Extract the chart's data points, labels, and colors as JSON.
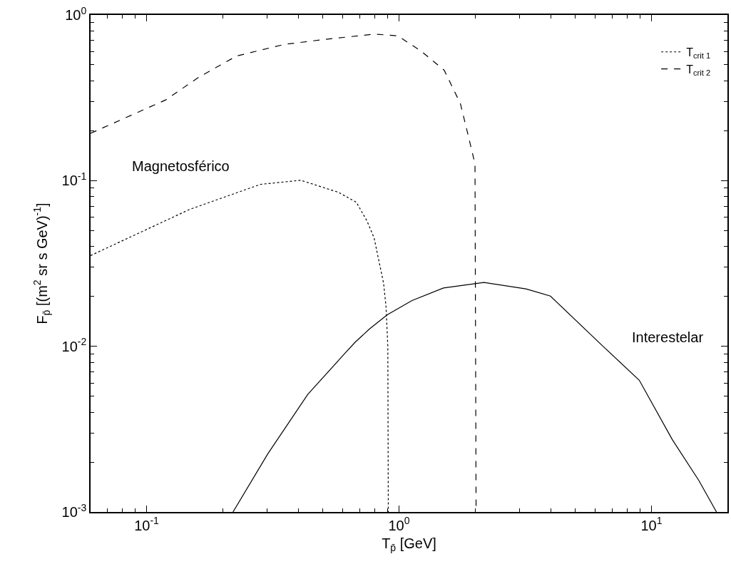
{
  "chart_data": {
    "type": "line",
    "xlabel": "T$_{p̄}$ [GeV]",
    "ylabel": "F$_{p̄}$ [(m$^{2}$ sr s GeV)$^{-1}$]",
    "log": "xy",
    "legend": "top right",
    "marker": "none",
    "xlim": [
      0.06,
      20
    ],
    "ylim": [
      0.001,
      1
    ],
    "xticks": [
      {
        "value": 0.07,
        "label": null
      },
      {
        "value": 0.08,
        "label": null
      },
      {
        "value": 0.09,
        "label": null
      },
      {
        "value": 0.1,
        "label": "10$^{-1}$"
      },
      {
        "value": 0.2,
        "label": null
      },
      {
        "value": 0.3,
        "label": null
      },
      {
        "value": 0.4,
        "label": null
      },
      {
        "value": 0.5,
        "label": null
      },
      {
        "value": 0.6,
        "label": null
      },
      {
        "value": 0.7,
        "label": null
      },
      {
        "value": 0.8,
        "label": null
      },
      {
        "value": 0.9,
        "label": null
      },
      {
        "value": 1,
        "label": "10$^{0}$"
      },
      {
        "value": 2,
        "label": null
      },
      {
        "value": 3,
        "label": null
      },
      {
        "value": 4,
        "label": null
      },
      {
        "value": 5,
        "label": null
      },
      {
        "value": 6,
        "label": null
      },
      {
        "value": 7,
        "label": null
      },
      {
        "value": 8,
        "label": null
      },
      {
        "value": 9,
        "label": null
      },
      {
        "value": 10,
        "label": "10$^{1}$"
      }
    ],
    "yticks": [
      {
        "value": 0.001,
        "label": "10$^{-3}$"
      },
      {
        "value": 0.002,
        "label": null
      },
      {
        "value": 0.003,
        "label": null
      },
      {
        "value": 0.004,
        "label": null
      },
      {
        "value": 0.005,
        "label": null
      },
      {
        "value": 0.006,
        "label": null
      },
      {
        "value": 0.007,
        "label": null
      },
      {
        "value": 0.008,
        "label": null
      },
      {
        "value": 0.009,
        "label": null
      },
      {
        "value": 0.01,
        "label": "10$^{-2}$"
      },
      {
        "value": 0.02,
        "label": null
      },
      {
        "value": 0.03,
        "label": null
      },
      {
        "value": 0.04,
        "label": null
      },
      {
        "value": 0.05,
        "label": null
      },
      {
        "value": 0.06,
        "label": null
      },
      {
        "value": 0.07,
        "label": null
      },
      {
        "value": 0.08,
        "label": null
      },
      {
        "value": 0.09,
        "label": null
      },
      {
        "value": 0.1,
        "label": "10$^{-1}$"
      },
      {
        "value": 0.2,
        "label": null
      },
      {
        "value": 0.3,
        "label": null
      },
      {
        "value": 0.4,
        "label": null
      },
      {
        "value": 0.5,
        "label": null
      },
      {
        "value": 0.6,
        "label": null
      },
      {
        "value": 0.7,
        "label": null
      },
      {
        "value": 0.8,
        "label": null
      },
      {
        "value": 0.9,
        "label": null
      },
      {
        "value": 1,
        "label": "10$^{0}$"
      }
    ],
    "series": [
      {
        "name": "T$_{crit 1}$",
        "color": "#000000",
        "line_style": "dotted",
        "x": [
          0.06,
          0.148,
          0.283,
          0.408,
          0.576,
          0.678,
          0.747,
          0.797,
          0.869,
          0.888,
          0.903,
          0.907
        ],
        "values": [
          0.0353,
          0.067,
          0.095,
          0.1005,
          0.085,
          0.074,
          0.057,
          0.045,
          0.024,
          0.0174,
          0.01,
          0.001
        ]
      },
      {
        "name": "T$_{crit 2}$",
        "color": "#000000",
        "line_style": "dashed",
        "x": [
          0.06,
          0.119,
          0.161,
          0.227,
          0.351,
          0.5,
          0.763,
          0.815,
          0.99,
          1.225,
          1.51,
          1.75,
          1.89,
          2.0,
          2.02
        ],
        "values": [
          0.193,
          0.307,
          0.421,
          0.565,
          0.664,
          0.71,
          0.761,
          0.765,
          0.748,
          0.604,
          0.464,
          0.292,
          0.181,
          0.126,
          0.001
        ]
      },
      {
        "color": "#000000",
        "line_style": "solid",
        "x": [
          0.22,
          0.302,
          0.435,
          0.601,
          0.671,
          0.763,
          0.898,
          1.126,
          1.5,
          2.17,
          3.18,
          3.98,
          6.34,
          8.95,
          12.1,
          15.4,
          18.1
        ],
        "values": [
          0.001,
          0.00224,
          0.00512,
          0.00883,
          0.0106,
          0.0127,
          0.0155,
          0.0189,
          0.0225,
          0.0243,
          0.0222,
          0.0201,
          0.0102,
          0.00624,
          0.00273,
          0.00155,
          0.001
        ]
      }
    ],
    "annotations": [
      "Magnetosférico",
      "Interestelar"
    ]
  }
}
